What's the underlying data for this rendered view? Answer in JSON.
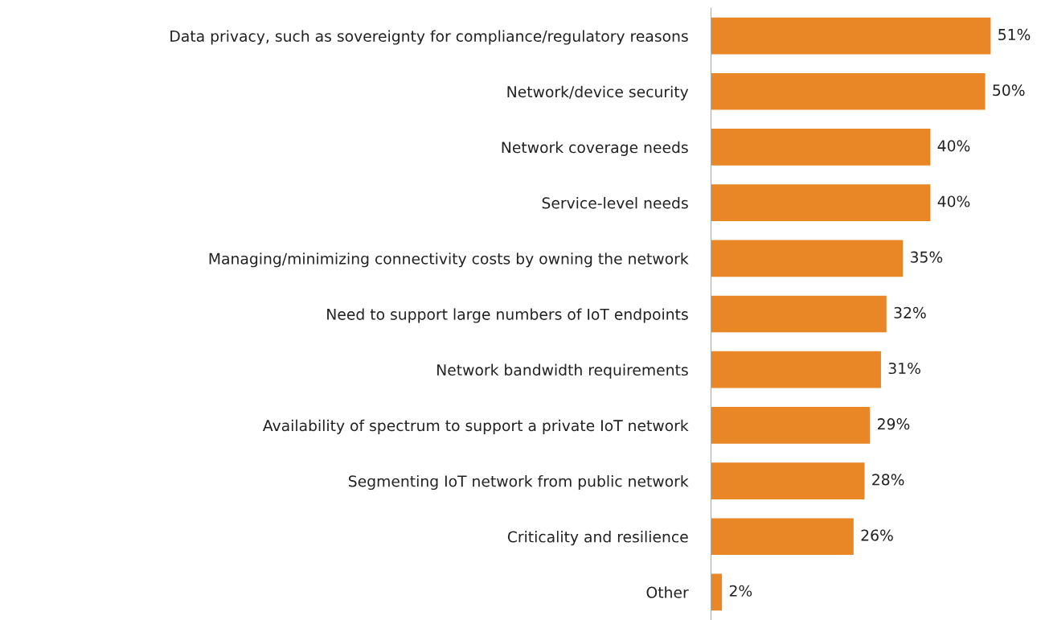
{
  "chart_data": {
    "type": "bar",
    "orientation": "horizontal",
    "categories": [
      "Data privacy, such as sovereignty for compliance/regulatory reasons",
      "Network/device security",
      "Network coverage needs",
      "Service-level needs",
      "Managing/minimizing connectivity costs by owning the network",
      "Need to support large numbers of IoT endpoints",
      "Network bandwidth requirements",
      "Availability of spectrum to support a private IoT network",
      "Segmenting IoT network from public network",
      "Criticality and resilience",
      "Other"
    ],
    "values": [
      51,
      50,
      40,
      40,
      35,
      32,
      31,
      29,
      28,
      26,
      2
    ],
    "value_labels": [
      "51%",
      "50%",
      "40%",
      "40%",
      "35%",
      "32%",
      "31%",
      "29%",
      "28%",
      "26%",
      "2%"
    ],
    "color": "#e98625",
    "tick_labels": "y"
  }
}
